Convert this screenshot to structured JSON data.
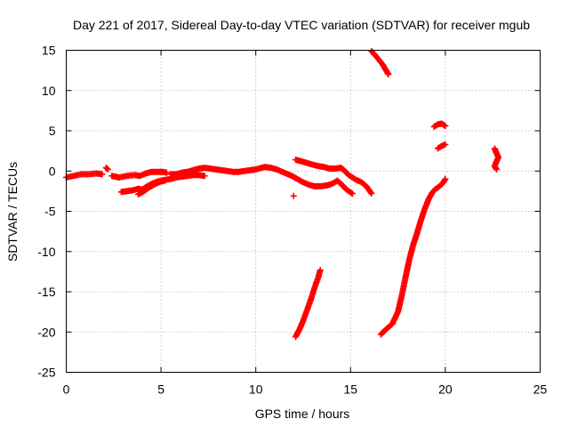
{
  "chart_data": {
    "type": "scatter",
    "title": "Day 221 of 2017, Sidereal Day-to-day VTEC variation (SDTVAR) for receiver mgub",
    "xlabel": "GPS time / hours",
    "ylabel": "SDTVAR / TECUs",
    "xlim": [
      0,
      25
    ],
    "ylim": [
      -25,
      15
    ],
    "xticks": [
      0,
      5,
      10,
      15,
      20,
      25
    ],
    "yticks": [
      -25,
      -20,
      -15,
      -10,
      -5,
      0,
      5,
      10,
      15
    ],
    "grid": true,
    "marker": "plus",
    "color": "#ff0000",
    "segments": [
      {
        "points": [
          [
            0.0,
            -0.8
          ],
          [
            0.4,
            -0.6
          ],
          [
            0.8,
            -0.4
          ],
          [
            1.2,
            -0.4
          ],
          [
            1.6,
            -0.3
          ],
          [
            1.9,
            -0.4
          ]
        ]
      },
      {
        "points": [
          [
            2.1,
            0.4
          ],
          [
            2.2,
            0.2
          ]
        ]
      },
      {
        "points": [
          [
            2.4,
            -0.6
          ],
          [
            2.6,
            -0.7
          ],
          [
            2.8,
            -0.8
          ],
          [
            3.2,
            -0.6
          ],
          [
            3.6,
            -0.5
          ],
          [
            3.9,
            -0.6
          ],
          [
            4.2,
            -0.3
          ],
          [
            4.5,
            -0.1
          ],
          [
            4.8,
            -0.1
          ],
          [
            5.1,
            -0.1
          ],
          [
            5.3,
            -0.2
          ]
        ]
      },
      {
        "points": [
          [
            2.9,
            -2.6
          ],
          [
            3.2,
            -2.5
          ],
          [
            3.5,
            -2.4
          ],
          [
            3.8,
            -2.2
          ],
          [
            4.0,
            -2.3
          ],
          [
            4.2,
            -2.0
          ],
          [
            4.5,
            -1.6
          ],
          [
            4.8,
            -1.3
          ],
          [
            5.2,
            -1.1
          ],
          [
            5.5,
            -1.0
          ],
          [
            5.8,
            -0.8
          ],
          [
            6.1,
            -0.7
          ],
          [
            6.4,
            -0.6
          ],
          [
            6.7,
            -0.5
          ],
          [
            7.0,
            -0.5
          ],
          [
            7.3,
            -0.6
          ]
        ]
      },
      {
        "points": [
          [
            3.8,
            -2.9
          ],
          [
            4.1,
            -2.5
          ],
          [
            4.4,
            -2.0
          ],
          [
            4.7,
            -1.6
          ],
          [
            5.0,
            -1.3
          ],
          [
            5.2,
            -1.2
          ]
        ]
      },
      {
        "points": [
          [
            5.5,
            -0.4
          ],
          [
            5.8,
            -0.4
          ],
          [
            6.1,
            -0.2
          ],
          [
            6.4,
            -0.1
          ],
          [
            6.7,
            0.1
          ],
          [
            7.0,
            0.3
          ],
          [
            7.3,
            0.4
          ],
          [
            7.6,
            0.3
          ],
          [
            7.9,
            0.2
          ],
          [
            8.2,
            0.1
          ],
          [
            8.5,
            0.0
          ],
          [
            8.8,
            -0.1
          ],
          [
            9.1,
            -0.1
          ],
          [
            9.4,
            0.0
          ],
          [
            9.7,
            0.1
          ],
          [
            10.0,
            0.2
          ],
          [
            10.3,
            0.4
          ],
          [
            10.5,
            0.5
          ],
          [
            10.8,
            0.4
          ],
          [
            11.1,
            0.2
          ],
          [
            11.4,
            -0.1
          ],
          [
            11.7,
            -0.4
          ],
          [
            11.9,
            -0.6
          ],
          [
            12.2,
            -1.0
          ],
          [
            12.5,
            -1.4
          ],
          [
            12.8,
            -1.7
          ],
          [
            13.1,
            -1.9
          ],
          [
            13.4,
            -1.9
          ],
          [
            13.7,
            -1.8
          ],
          [
            13.9,
            -1.7
          ],
          [
            14.1,
            -1.5
          ],
          [
            14.3,
            -1.2
          ],
          [
            14.5,
            -1.6
          ],
          [
            14.7,
            -2.1
          ],
          [
            14.9,
            -2.5
          ],
          [
            15.1,
            -2.8
          ]
        ]
      },
      {
        "points": [
          [
            12.0,
            -3.1
          ]
        ]
      },
      {
        "points": [
          [
            12.1,
            1.4
          ],
          [
            12.4,
            1.2
          ],
          [
            12.7,
            1.0
          ],
          [
            13.0,
            0.8
          ],
          [
            13.3,
            0.6
          ],
          [
            13.6,
            0.5
          ],
          [
            13.9,
            0.3
          ],
          [
            14.2,
            0.3
          ],
          [
            14.5,
            0.4
          ],
          [
            14.7,
            0.0
          ],
          [
            14.9,
            -0.5
          ],
          [
            15.1,
            -0.8
          ],
          [
            15.3,
            -1.1
          ],
          [
            15.5,
            -1.3
          ],
          [
            15.7,
            -1.6
          ],
          [
            15.9,
            -2.1
          ],
          [
            16.1,
            -2.8
          ]
        ]
      },
      {
        "points": [
          [
            12.1,
            -20.6
          ],
          [
            12.3,
            -19.7
          ],
          [
            12.5,
            -18.6
          ],
          [
            12.7,
            -17.3
          ],
          [
            12.9,
            -16.0
          ],
          [
            13.1,
            -14.5
          ],
          [
            13.3,
            -13.2
          ],
          [
            13.4,
            -12.3
          ]
        ]
      },
      {
        "points": [
          [
            16.1,
            14.9
          ],
          [
            16.4,
            14.1
          ],
          [
            16.7,
            13.2
          ],
          [
            17.0,
            12.0
          ]
        ]
      },
      {
        "points": [
          [
            16.6,
            -20.3
          ],
          [
            16.9,
            -19.6
          ],
          [
            17.2,
            -19.0
          ],
          [
            17.5,
            -17.5
          ],
          [
            17.7,
            -15.5
          ],
          [
            17.9,
            -13.2
          ],
          [
            18.1,
            -11.0
          ],
          [
            18.3,
            -9.2
          ],
          [
            18.5,
            -7.8
          ],
          [
            18.7,
            -6.2
          ],
          [
            18.9,
            -4.8
          ],
          [
            19.1,
            -3.6
          ],
          [
            19.3,
            -2.7
          ],
          [
            19.5,
            -2.2
          ],
          [
            19.7,
            -1.9
          ],
          [
            19.9,
            -1.4
          ],
          [
            20.0,
            -1.0
          ]
        ]
      },
      {
        "points": [
          [
            19.4,
            5.5
          ],
          [
            19.6,
            5.8
          ],
          [
            19.8,
            5.9
          ],
          [
            20.0,
            5.6
          ]
        ]
      },
      {
        "points": [
          [
            19.6,
            2.8
          ],
          [
            19.8,
            3.1
          ],
          [
            20.0,
            3.3
          ]
        ]
      },
      {
        "points": [
          [
            22.6,
            2.8
          ],
          [
            22.7,
            2.2
          ],
          [
            22.8,
            1.7
          ],
          [
            22.7,
            1.2
          ],
          [
            22.6,
            0.6
          ],
          [
            22.7,
            0.2
          ]
        ]
      }
    ]
  }
}
